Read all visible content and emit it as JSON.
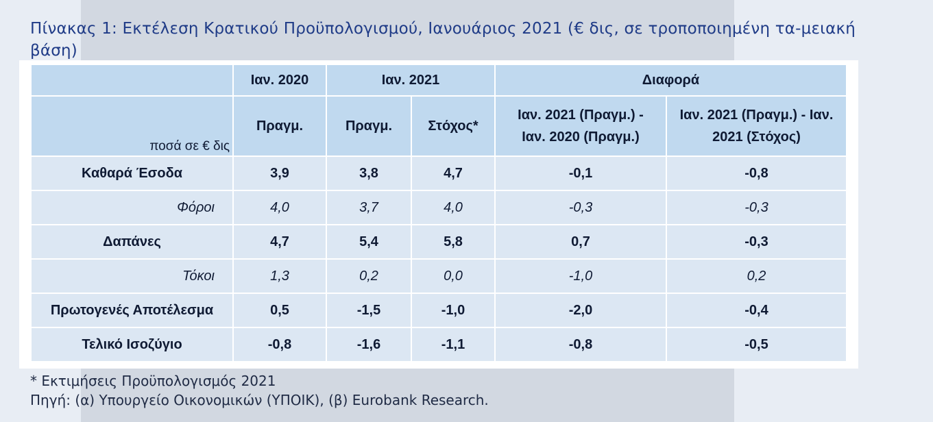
{
  "title": "Πίνακας 1: Εκτέλεση Κρατικού Προϋπολογισμού, Ιανουάριος 2021 (€ δις, σε τροποποιημένη τα-μειακή βάση)",
  "header": {
    "unit_label": "ποσά σε € δις",
    "year1": "Ιαν. 2020",
    "year2": "Ιαν. 2021",
    "diff": "Διαφορά",
    "col_actual_2020": "Πραγμ.",
    "col_actual_2021": "Πραγμ.",
    "col_target_2021": "Στόχος*",
    "col_diff1": "Ιαν. 2021 (Πραγμ.) - Ιαν. 2020 (Πραγμ.)",
    "col_diff2": "Ιαν. 2021 (Πραγμ.) - Ιαν. 2021 (Στόχος)"
  },
  "rows": [
    {
      "label": "Καθαρά Έσοδα",
      "style": "bold",
      "values": [
        "3,9",
        "3,8",
        "4,7",
        "-0,1",
        "-0,8"
      ]
    },
    {
      "label": "Φόροι",
      "style": "italic",
      "values": [
        "4,0",
        "3,7",
        "4,0",
        "-0,3",
        "-0,3"
      ]
    },
    {
      "label": "Δαπάνες",
      "style": "bold",
      "values": [
        "4,7",
        "5,4",
        "5,8",
        "0,7",
        "-0,3"
      ]
    },
    {
      "label": "Τόκοι",
      "style": "italic",
      "values": [
        "1,3",
        "0,2",
        "0,0",
        "-1,0",
        "0,2"
      ]
    },
    {
      "label": "Πρωτογενές Αποτέλεσμα",
      "style": "bold",
      "values": [
        "0,5",
        "-1,5",
        "-1,0",
        "-2,0",
        "-0,4"
      ]
    },
    {
      "label": "Τελικό Ισοζύγιο",
      "style": "bold",
      "values": [
        "-0,8",
        "-1,6",
        "-1,1",
        "-0,8",
        "-0,5"
      ]
    }
  ],
  "footnotes": {
    "estimate": "* Εκτιμήσεις Προϋπολογισμός 2021",
    "source": "Πηγή: (α) Υπουργείο Οικονομικών (ΥΠΟΙΚ), (β) Eurobank Research."
  }
}
